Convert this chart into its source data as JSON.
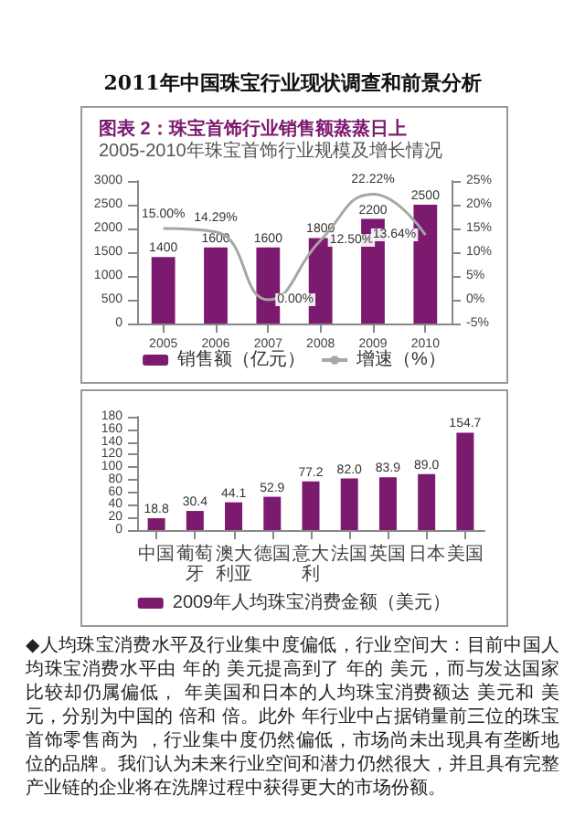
{
  "chart_data": [
    {
      "type": "other",
      "title": "2011年中国珠宝行业现状调查和前景分析"
    },
    {
      "type": "bar",
      "title": "图表 2：珠宝首饰行业销售额蒸蒸日上",
      "subtitle": "2005-2010年珠宝首饰行业规模及增长情况",
      "categories": [
        "2005",
        "2006",
        "2007",
        "2008",
        "2009",
        "2010"
      ],
      "series": [
        {
          "name": "销售额（亿元）",
          "type": "bar",
          "color": "#7b1a6e",
          "values": [
            1400,
            1600,
            1600,
            1800,
            2200,
            2500
          ]
        },
        {
          "name": "增速（%）",
          "type": "line",
          "axis": "y2",
          "color": "#a6a6a6",
          "marker": "none",
          "values": [
            15,
            14.29,
            0,
            12.5,
            22.22,
            13.64
          ],
          "value_labels": [
            "15.00%",
            "14.29%",
            "0.00%",
            "12.50%",
            "22.22%",
            "13.64%"
          ]
        }
      ],
      "data_labels": true,
      "ylim": [
        0,
        3000
      ],
      "yticks": [
        0,
        500,
        1000,
        1500,
        2000,
        2500,
        3000
      ],
      "y2lim": [
        -5,
        25
      ],
      "y2ticks": [
        {
          "value": -5,
          "label": "-5%"
        },
        {
          "value": 0,
          "label": "0%"
        },
        {
          "value": 5,
          "label": "5%"
        },
        {
          "value": 10,
          "label": "10%"
        },
        {
          "value": 15,
          "label": "15%"
        },
        {
          "value": 20,
          "label": "20%"
        },
        {
          "value": 25,
          "label": "25%"
        }
      ],
      "legend": "bottom",
      "grid": false
    },
    {
      "type": "bar",
      "categories": [
        "中国",
        "葡萄牙",
        "澳大利亚",
        "德国",
        "意大利",
        "法国",
        "英国",
        "日本",
        "美国"
      ],
      "series": [
        {
          "name": "2009年人均珠宝消费金额（美元）",
          "color": "#7b1a6e",
          "values": [
            18.8,
            30.4,
            44.1,
            52.9,
            77.2,
            82.0,
            83.9,
            89.0,
            154.7
          ],
          "value_labels": [
            "18.8",
            "30.4",
            "44.1",
            "52.9",
            "77.2",
            "82.0",
            "83.9",
            "89.0",
            "154.7"
          ]
        }
      ],
      "ylim": [
        0,
        180
      ],
      "yticks": [
        0,
        20,
        40,
        60,
        80,
        100,
        120,
        140,
        160,
        180
      ],
      "legend": "bottom",
      "grid": false
    },
    {
      "type": "other",
      "annotations": [
        "◆人均珠宝消费水平及行业集中度偏低，行业空间大：目前中国人均珠宝消费水平由 年的 美元提高到了 年的 美元，而与发达国家比较却仍属偏低， 年美国和日本的人均珠宝消费额达 美元和 美元，分别为中国的 倍和 倍。此外 年行业中占据销量前三位的珠宝首饰零售商为 ，行业集中度仍然偏低，市场尚未出现具有垄断地位的品牌。我们认为未来行业空间和潜力仍然很大，并且具有完整产业链的企业将在洗牌过程中获得更大的市场份额。"
      ]
    }
  ]
}
